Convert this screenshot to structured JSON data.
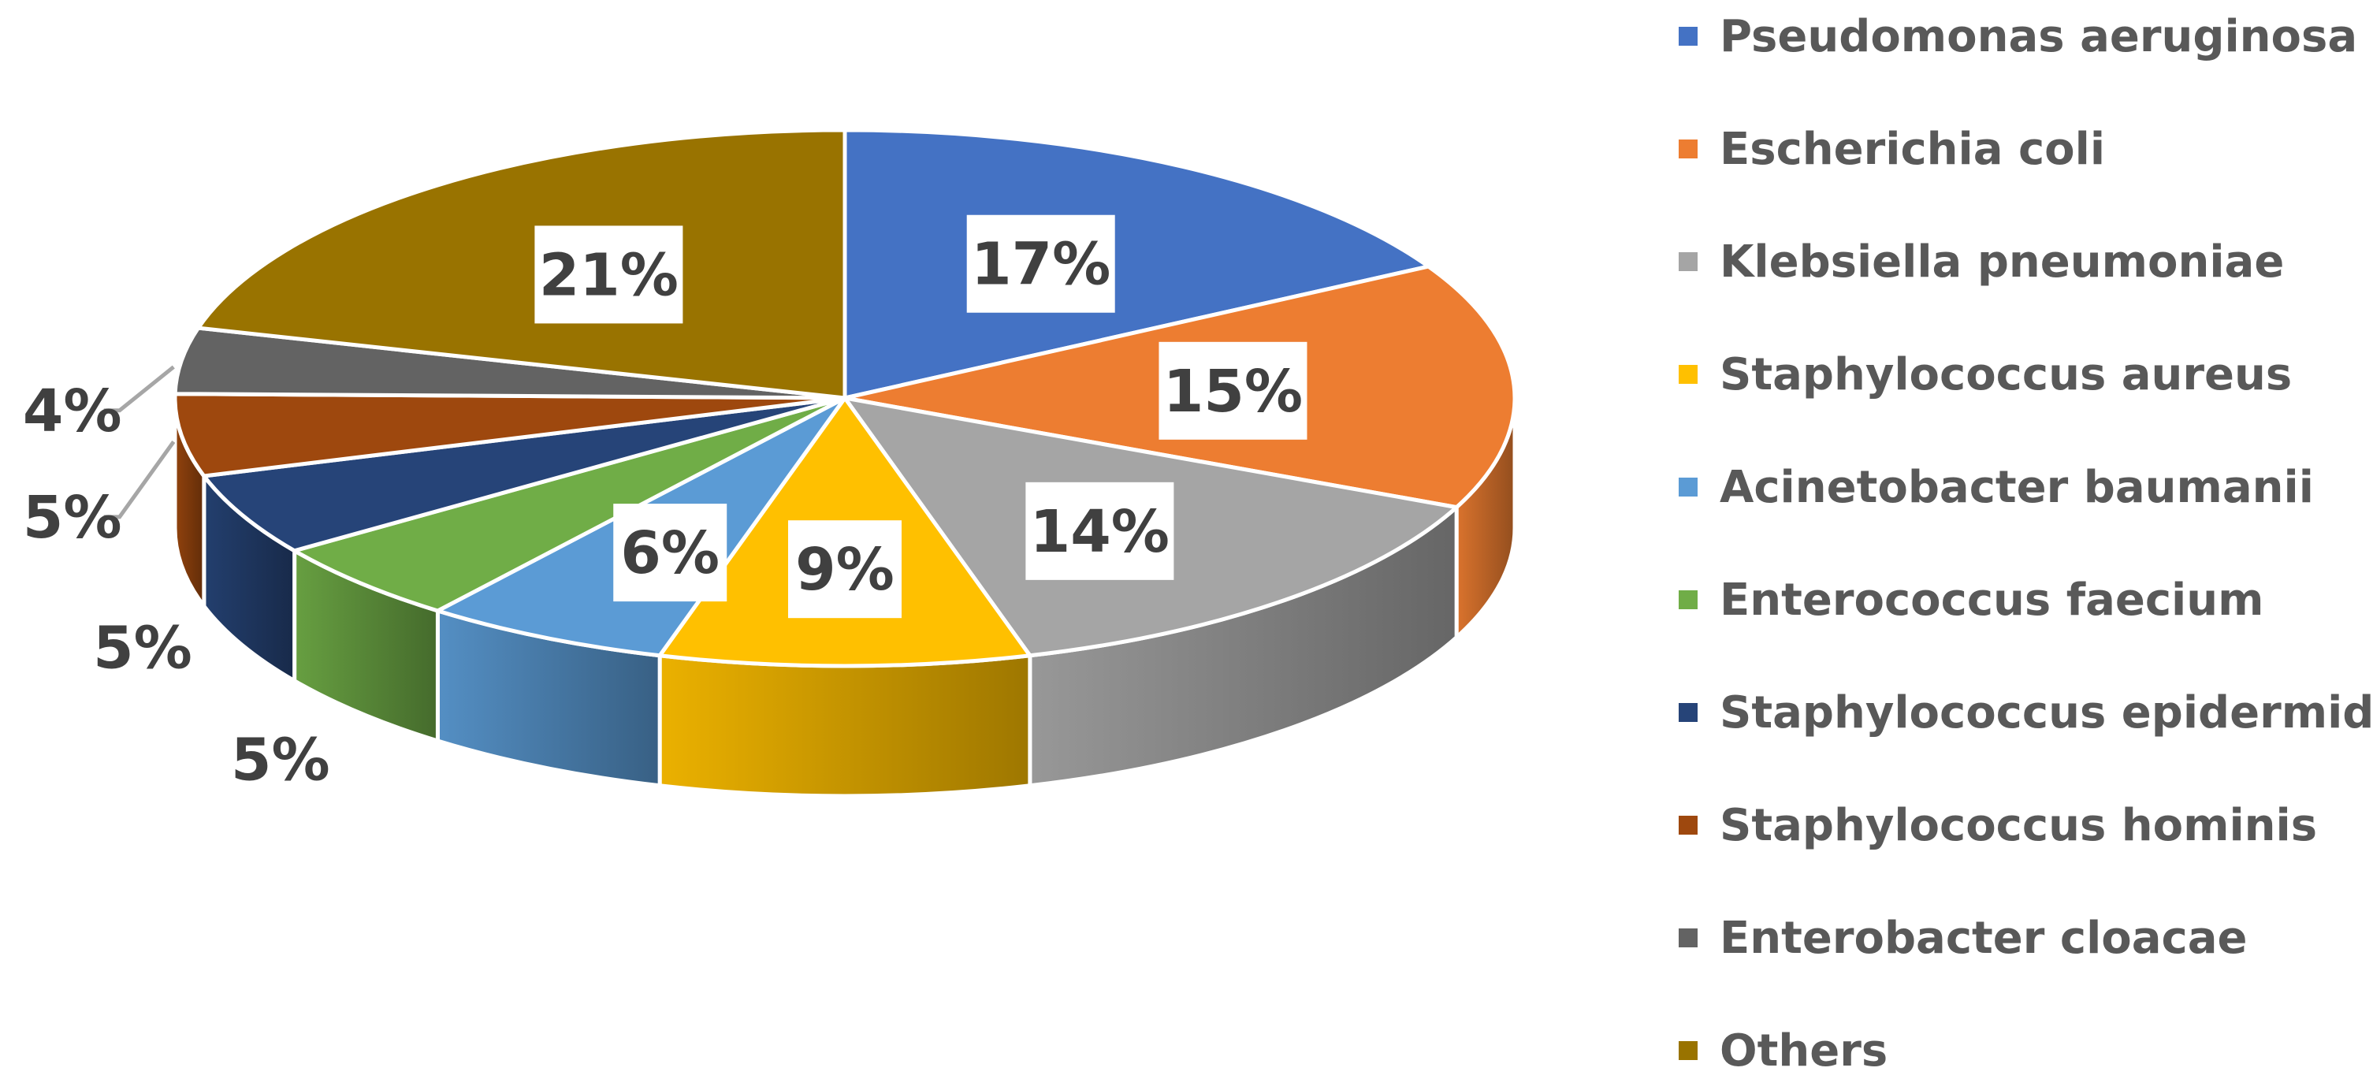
{
  "chart_data": {
    "type": "pie",
    "style": "3d",
    "title": "",
    "labels": [
      "Pseudomonas aeruginosa",
      "Escherichia coli",
      "Klebsiella pneumoniae",
      "Staphylococcus aureus",
      "Acinetobacter baumanii",
      "Enterococcus faecium",
      "Staphylococcus epidermidis",
      "Staphylococcus hominis",
      "Enterobacter cloacae",
      "Others"
    ],
    "values": [
      17,
      15,
      14,
      9,
      6,
      5,
      5,
      5,
      4,
      21
    ],
    "value_labels": [
      "17%",
      "15%",
      "14%",
      "9%",
      "6%",
      "5%",
      "5%",
      "5%",
      "4%",
      "21%"
    ],
    "colors": [
      "#4472C4",
      "#ED7D31",
      "#A5A5A5",
      "#FFC000",
      "#5B9BD5",
      "#70AD47",
      "#264478",
      "#9E480E",
      "#636363",
      "#997300"
    ],
    "legend_position": "right",
    "start_angle_deg": 0,
    "direction": "clockwise"
  }
}
